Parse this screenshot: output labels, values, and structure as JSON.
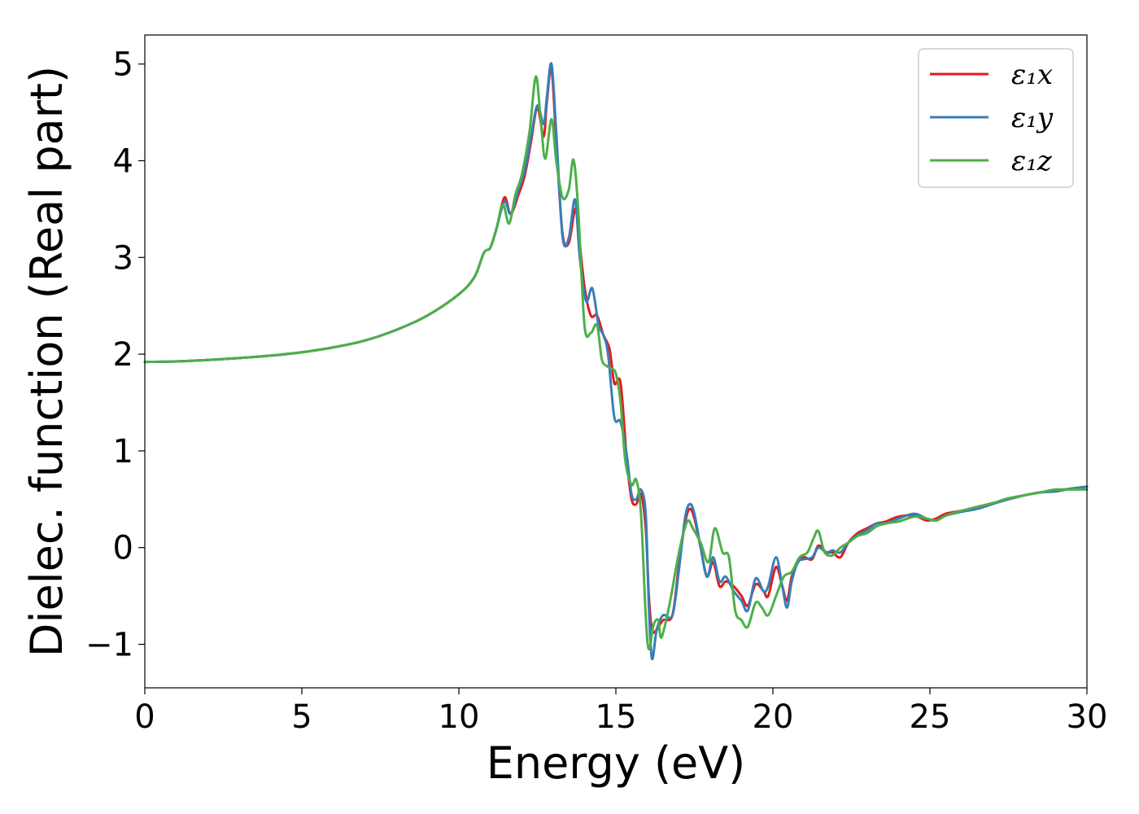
{
  "chart_data": {
    "type": "line",
    "title": "",
    "xlabel": "Energy (eV)",
    "ylabel": "Dielec. function (Real part)",
    "xlim": [
      0,
      30
    ],
    "ylim": [
      -1.45,
      5.3
    ],
    "xticks": [
      0,
      5,
      10,
      15,
      20,
      25,
      30
    ],
    "xtick_labels": [
      "0",
      "5",
      "10",
      "15",
      "20",
      "25",
      "30"
    ],
    "yticks": [
      -1,
      0,
      1,
      2,
      3,
      4,
      5
    ],
    "ytick_labels": [
      "−1",
      "0",
      "1",
      "2",
      "3",
      "4",
      "5"
    ],
    "grid": false,
    "legend_position": "top-right",
    "series": [
      {
        "name": "ε₁x",
        "color": "#e41a1c",
        "points": [
          [
            0,
            1.92
          ],
          [
            1,
            1.925
          ],
          [
            2,
            1.94
          ],
          [
            3,
            1.96
          ],
          [
            4,
            1.985
          ],
          [
            5,
            2.02
          ],
          [
            6,
            2.07
          ],
          [
            7,
            2.14
          ],
          [
            8,
            2.25
          ],
          [
            9,
            2.4
          ],
          [
            10,
            2.62
          ],
          [
            10.5,
            2.8
          ],
          [
            10.8,
            3.05
          ],
          [
            11,
            3.1
          ],
          [
            11.2,
            3.3
          ],
          [
            11.45,
            3.62
          ],
          [
            11.65,
            3.45
          ],
          [
            11.9,
            3.65
          ],
          [
            12.1,
            3.85
          ],
          [
            12.3,
            4.2
          ],
          [
            12.5,
            4.55
          ],
          [
            12.7,
            4.25
          ],
          [
            12.8,
            4.6
          ],
          [
            12.95,
            4.95
          ],
          [
            13.1,
            4.2
          ],
          [
            13.3,
            3.25
          ],
          [
            13.5,
            3.15
          ],
          [
            13.7,
            3.5
          ],
          [
            13.8,
            3.3
          ],
          [
            14,
            2.7
          ],
          [
            14.2,
            2.4
          ],
          [
            14.4,
            2.4
          ],
          [
            14.6,
            2.2
          ],
          [
            14.8,
            2.05
          ],
          [
            14.95,
            1.7
          ],
          [
            15.15,
            1.7
          ],
          [
            15.35,
            0.9
          ],
          [
            15.5,
            0.5
          ],
          [
            15.65,
            0.45
          ],
          [
            15.8,
            0.55
          ],
          [
            15.95,
            0.2
          ],
          [
            16.05,
            -0.5
          ],
          [
            16.15,
            -0.85
          ],
          [
            16.3,
            -0.85
          ],
          [
            16.5,
            -0.75
          ],
          [
            16.8,
            -0.7
          ],
          [
            17,
            -0.2
          ],
          [
            17.2,
            0.25
          ],
          [
            17.35,
            0.4
          ],
          [
            17.5,
            0.3
          ],
          [
            17.7,
            0.0
          ],
          [
            17.9,
            -0.3
          ],
          [
            18.1,
            -0.15
          ],
          [
            18.3,
            -0.4
          ],
          [
            18.5,
            -0.35
          ],
          [
            18.75,
            -0.4
          ],
          [
            19,
            -0.5
          ],
          [
            19.2,
            -0.6
          ],
          [
            19.45,
            -0.38
          ],
          [
            19.7,
            -0.45
          ],
          [
            19.85,
            -0.5
          ],
          [
            20.1,
            -0.2
          ],
          [
            20.3,
            -0.4
          ],
          [
            20.45,
            -0.55
          ],
          [
            20.6,
            -0.3
          ],
          [
            20.8,
            -0.15
          ],
          [
            21,
            -0.1
          ],
          [
            21.25,
            -0.12
          ],
          [
            21.45,
            0.02
          ],
          [
            21.7,
            -0.05
          ],
          [
            21.9,
            -0.05
          ],
          [
            22.15,
            -0.1
          ],
          [
            22.4,
            0.05
          ],
          [
            22.7,
            0.15
          ],
          [
            23,
            0.2
          ],
          [
            23.3,
            0.25
          ],
          [
            23.6,
            0.27
          ],
          [
            24,
            0.32
          ],
          [
            24.5,
            0.33
          ],
          [
            24.9,
            0.28
          ],
          [
            25.2,
            0.3
          ],
          [
            25.5,
            0.35
          ],
          [
            26,
            0.38
          ],
          [
            26.5,
            0.42
          ],
          [
            27,
            0.46
          ],
          [
            27.5,
            0.5
          ],
          [
            28,
            0.54
          ],
          [
            28.5,
            0.57
          ],
          [
            29,
            0.59
          ],
          [
            29.5,
            0.61
          ],
          [
            30,
            0.63
          ]
        ]
      },
      {
        "name": "ε₁y",
        "color": "#377eb8",
        "points": [
          [
            0,
            1.92
          ],
          [
            1,
            1.925
          ],
          [
            2,
            1.94
          ],
          [
            3,
            1.96
          ],
          [
            4,
            1.985
          ],
          [
            5,
            2.02
          ],
          [
            6,
            2.07
          ],
          [
            7,
            2.14
          ],
          [
            8,
            2.25
          ],
          [
            9,
            2.4
          ],
          [
            10,
            2.62
          ],
          [
            10.5,
            2.8
          ],
          [
            10.8,
            3.05
          ],
          [
            11,
            3.1
          ],
          [
            11.2,
            3.3
          ],
          [
            11.45,
            3.58
          ],
          [
            11.65,
            3.45
          ],
          [
            11.9,
            3.7
          ],
          [
            12.1,
            3.9
          ],
          [
            12.3,
            4.25
          ],
          [
            12.5,
            4.57
          ],
          [
            12.7,
            4.38
          ],
          [
            12.8,
            4.65
          ],
          [
            12.95,
            5.0
          ],
          [
            13.1,
            4.3
          ],
          [
            13.3,
            3.22
          ],
          [
            13.5,
            3.2
          ],
          [
            13.7,
            3.6
          ],
          [
            13.85,
            3.0
          ],
          [
            14.05,
            2.55
          ],
          [
            14.25,
            2.68
          ],
          [
            14.45,
            2.3
          ],
          [
            14.6,
            2.2
          ],
          [
            14.75,
            2.0
          ],
          [
            14.95,
            1.35
          ],
          [
            15.15,
            1.3
          ],
          [
            15.35,
            0.95
          ],
          [
            15.5,
            0.55
          ],
          [
            15.65,
            0.5
          ],
          [
            15.8,
            0.6
          ],
          [
            15.95,
            0.35
          ],
          [
            16.05,
            -0.6
          ],
          [
            16.15,
            -1.15
          ],
          [
            16.3,
            -0.85
          ],
          [
            16.5,
            -0.7
          ],
          [
            16.8,
            -0.7
          ],
          [
            17,
            -0.25
          ],
          [
            17.2,
            0.3
          ],
          [
            17.35,
            0.45
          ],
          [
            17.5,
            0.35
          ],
          [
            17.7,
            0.0
          ],
          [
            17.9,
            -0.3
          ],
          [
            18.1,
            -0.1
          ],
          [
            18.3,
            -0.35
          ],
          [
            18.5,
            -0.3
          ],
          [
            18.75,
            -0.45
          ],
          [
            19,
            -0.55
          ],
          [
            19.2,
            -0.65
          ],
          [
            19.45,
            -0.32
          ],
          [
            19.7,
            -0.45
          ],
          [
            19.85,
            -0.4
          ],
          [
            20.1,
            -0.1
          ],
          [
            20.3,
            -0.4
          ],
          [
            20.45,
            -0.62
          ],
          [
            20.6,
            -0.35
          ],
          [
            20.8,
            -0.15
          ],
          [
            21,
            -0.12
          ],
          [
            21.25,
            -0.1
          ],
          [
            21.45,
            0.0
          ],
          [
            21.7,
            -0.05
          ],
          [
            21.9,
            -0.03
          ],
          [
            22.15,
            -0.05
          ],
          [
            22.4,
            0.05
          ],
          [
            22.7,
            0.13
          ],
          [
            23,
            0.18
          ],
          [
            23.3,
            0.25
          ],
          [
            23.6,
            0.25
          ],
          [
            24,
            0.3
          ],
          [
            24.5,
            0.35
          ],
          [
            24.9,
            0.3
          ],
          [
            25.2,
            0.28
          ],
          [
            25.5,
            0.33
          ],
          [
            26,
            0.37
          ],
          [
            26.5,
            0.4
          ],
          [
            27,
            0.45
          ],
          [
            27.5,
            0.5
          ],
          [
            28,
            0.54
          ],
          [
            28.5,
            0.57
          ],
          [
            29,
            0.58
          ],
          [
            29.5,
            0.61
          ],
          [
            30,
            0.63
          ]
        ]
      },
      {
        "name": "ε₁z",
        "color": "#4daf4a",
        "points": [
          [
            0,
            1.92
          ],
          [
            1,
            1.925
          ],
          [
            2,
            1.94
          ],
          [
            3,
            1.96
          ],
          [
            4,
            1.985
          ],
          [
            5,
            2.02
          ],
          [
            6,
            2.07
          ],
          [
            7,
            2.14
          ],
          [
            8,
            2.25
          ],
          [
            9,
            2.4
          ],
          [
            10,
            2.62
          ],
          [
            10.5,
            2.8
          ],
          [
            10.8,
            3.05
          ],
          [
            11,
            3.1
          ],
          [
            11.2,
            3.3
          ],
          [
            11.4,
            3.55
          ],
          [
            11.6,
            3.35
          ],
          [
            11.8,
            3.65
          ],
          [
            12.0,
            3.85
          ],
          [
            12.25,
            4.3
          ],
          [
            12.45,
            4.87
          ],
          [
            12.6,
            4.45
          ],
          [
            12.75,
            4.02
          ],
          [
            12.95,
            4.43
          ],
          [
            13.1,
            4.0
          ],
          [
            13.3,
            3.62
          ],
          [
            13.5,
            3.7
          ],
          [
            13.65,
            4.01
          ],
          [
            13.8,
            3.5
          ],
          [
            14,
            2.3
          ],
          [
            14.2,
            2.22
          ],
          [
            14.4,
            2.3
          ],
          [
            14.55,
            1.95
          ],
          [
            14.7,
            1.88
          ],
          [
            14.85,
            1.85
          ],
          [
            15.0,
            1.8
          ],
          [
            15.15,
            1.5
          ],
          [
            15.3,
            0.9
          ],
          [
            15.5,
            0.65
          ],
          [
            15.65,
            0.7
          ],
          [
            15.8,
            0.35
          ],
          [
            15.95,
            -0.7
          ],
          [
            16.05,
            -1.05
          ],
          [
            16.2,
            -0.8
          ],
          [
            16.35,
            -0.75
          ],
          [
            16.45,
            -0.93
          ],
          [
            16.7,
            -0.6
          ],
          [
            16.95,
            -0.15
          ],
          [
            17.15,
            0.15
          ],
          [
            17.3,
            0.28
          ],
          [
            17.45,
            0.2
          ],
          [
            17.7,
            0.05
          ],
          [
            17.95,
            -0.15
          ],
          [
            18.15,
            0.2
          ],
          [
            18.4,
            -0.05
          ],
          [
            18.6,
            -0.1
          ],
          [
            18.8,
            -0.65
          ],
          [
            19.0,
            -0.75
          ],
          [
            19.2,
            -0.82
          ],
          [
            19.45,
            -0.57
          ],
          [
            19.65,
            -0.62
          ],
          [
            19.85,
            -0.7
          ],
          [
            20.1,
            -0.5
          ],
          [
            20.35,
            -0.3
          ],
          [
            20.6,
            -0.25
          ],
          [
            20.85,
            -0.1
          ],
          [
            21.1,
            -0.05
          ],
          [
            21.3,
            0.1
          ],
          [
            21.45,
            0.17
          ],
          [
            21.65,
            -0.05
          ],
          [
            21.9,
            -0.08
          ],
          [
            22.15,
            0.0
          ],
          [
            22.4,
            0.05
          ],
          [
            22.7,
            0.12
          ],
          [
            23,
            0.15
          ],
          [
            23.3,
            0.22
          ],
          [
            23.6,
            0.25
          ],
          [
            24,
            0.27
          ],
          [
            24.5,
            0.32
          ],
          [
            24.9,
            0.3
          ],
          [
            25.2,
            0.28
          ],
          [
            25.5,
            0.33
          ],
          [
            26,
            0.38
          ],
          [
            26.5,
            0.42
          ],
          [
            27,
            0.46
          ],
          [
            27.5,
            0.51
          ],
          [
            28,
            0.54
          ],
          [
            28.5,
            0.57
          ],
          [
            29,
            0.6
          ],
          [
            29.5,
            0.6
          ],
          [
            30,
            0.6
          ]
        ]
      }
    ]
  }
}
